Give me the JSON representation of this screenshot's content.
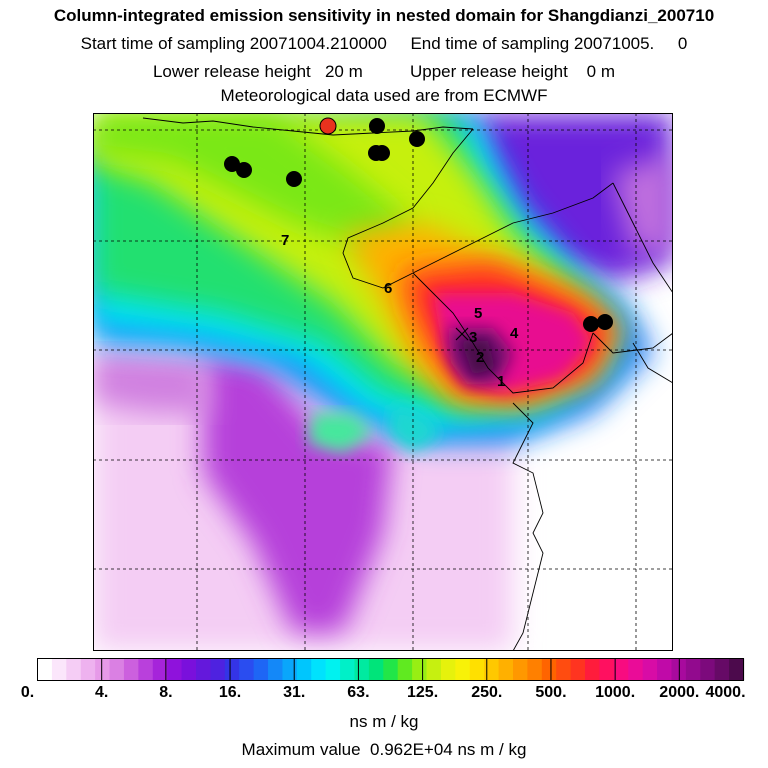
{
  "header": {
    "title": "Column-integrated emission sensitivity in nested domain for Shangdianzi_200710",
    "line2": "Start time of sampling 20071004.210000     End time of sampling 20071005.     0",
    "line3": "Lower release height   20 m          Upper release height    0 m",
    "line4": "Meteorological data used are from ECMWF"
  },
  "map": {
    "number_labels": [
      "1",
      "2",
      "3",
      "4",
      "5",
      "6",
      "7"
    ],
    "receptor_marker_color": "#e8321e",
    "station_marker_color": "#000000"
  },
  "colorbar": {
    "tick_labels": [
      "0.",
      "4.",
      "8.",
      "16.",
      "31.",
      "63.",
      "125.",
      "250.",
      "500.",
      "1000.",
      "2000.",
      "4000."
    ],
    "colors": [
      "#ffffff",
      "#fbe6fb",
      "#f5cdf5",
      "#eeb2ef",
      "#e69ae8",
      "#da80e3",
      "#cc60de",
      "#b940dc",
      "#a624da",
      "#8f12dc",
      "#7a10dc",
      "#6418dc",
      "#4e22e0",
      "#3434e6",
      "#2a4df0",
      "#1e66f5",
      "#1488f8",
      "#0aa6fb",
      "#00c6fd",
      "#00e2fd",
      "#00f2f0",
      "#00f0c8",
      "#00eaa0",
      "#00e47a",
      "#22e648",
      "#60ea20",
      "#98ee14",
      "#c6f010",
      "#e6f20c",
      "#f8f208",
      "#ffe000",
      "#ffc800",
      "#ffb000",
      "#ff9800",
      "#ff8000",
      "#ff6400",
      "#ff4c10",
      "#ff3420",
      "#ff1c3c",
      "#ff1060",
      "#f80c80",
      "#ea0c98",
      "#d80ca6",
      "#c00aa8",
      "#a80a9e",
      "#920a8e",
      "#7c0a7c",
      "#660a66",
      "#4c0a4c"
    ],
    "unit": "ns m / kg",
    "max_value_text": "Maximum value  0.962E+04 ns m / kg"
  }
}
